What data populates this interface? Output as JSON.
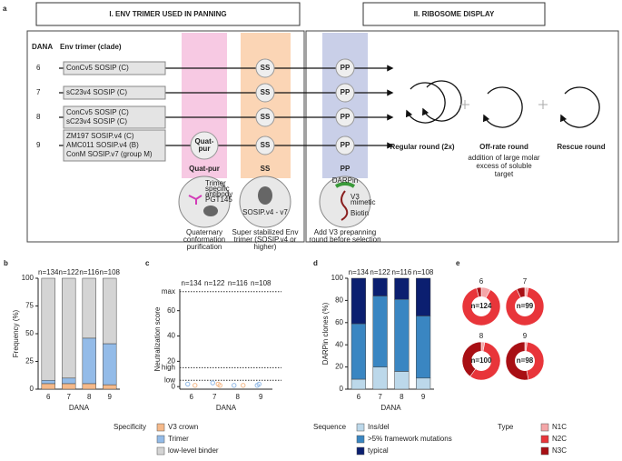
{
  "panel_a": {
    "label": "a",
    "header_left": "I. ENV TRIMER USED IN PANNING",
    "header_right": "II. RIBOSOME DISPLAY",
    "col_dana": "DANA",
    "col_env": "Env trimer (clade)",
    "rows": [
      {
        "dana": "6",
        "trimers": [
          "ConCv5 SOSIP (C)"
        ],
        "ss": "SS",
        "pp": "PP"
      },
      {
        "dana": "7",
        "trimers": [
          "sC23v4 SOSIP (C)"
        ],
        "ss": "SS",
        "pp": "PP"
      },
      {
        "dana": "8",
        "trimers": [
          "ConCv5 SOSIP (C)",
          "sC23v4 SOSIP (C)"
        ],
        "ss": "SS",
        "pp": "PP"
      },
      {
        "dana": "9",
        "trimers": [
          "ZM197 SOSIP.v4 (C)",
          "AMC011 SOSIP.v4 (B)",
          "ConM SOSIP.v7 (group M)"
        ],
        "quat": [
          "Quat-",
          "pur"
        ],
        "ss": "SS",
        "pp": "PP"
      }
    ],
    "column_labels": {
      "quat": "Quat-pur",
      "ss": "SS",
      "pp": "PP"
    },
    "illustration": {
      "antibody": [
        "Trimer",
        "specific",
        "antibody",
        "PGT145"
      ],
      "sosip": "SOSIP.v4 - v7",
      "darpin": "DARPin",
      "v3": [
        "V3",
        "mimetic"
      ],
      "biotin": "Biotin"
    },
    "descriptions": {
      "quat": [
        "Quaternary",
        "conformation",
        "purification"
      ],
      "ss": [
        "Super stabilized Env",
        "trimer (SOSIP.v4 or",
        "higher)"
      ],
      "pp": [
        "Add V3 prepanning",
        "round before selection"
      ]
    },
    "rounds": [
      {
        "title": "Regular round (2x)"
      },
      {
        "title": "Off-rate round",
        "detail": [
          "addition of large molar",
          "excess of soluble",
          "target"
        ]
      },
      {
        "title": "Rescue round"
      }
    ]
  },
  "chart_data": [
    {
      "type": "stacked_bar",
      "label": "b",
      "categories": [
        "6",
        "7",
        "8",
        "9"
      ],
      "annotations": [
        "n=134",
        "n=122",
        "n=116",
        "n=108"
      ],
      "series": [
        {
          "name": "V3 crown",
          "color": "#f5b98a",
          "values": [
            5,
            5,
            5,
            4
          ]
        },
        {
          "name": "Trimer",
          "color": "#93bbe8",
          "values": [
            3,
            5,
            41,
            37
          ]
        },
        {
          "name": "low-level binder",
          "color": "#d4d4d4",
          "values": [
            92,
            90,
            54,
            59
          ]
        }
      ],
      "ylim": [
        0,
        100
      ],
      "yticks": [
        0,
        25,
        50,
        75,
        100
      ],
      "ylabel": "Frequency (%)",
      "xlabel": "DANA",
      "legend_title": "Specificity"
    },
    {
      "type": "strip",
      "label": "c",
      "categories": [
        "6",
        "7",
        "8",
        "9"
      ],
      "annotations": [
        "n=134",
        "n=122",
        "n=116",
        "n=108"
      ],
      "series": [
        {
          "color": "#93bbe8",
          "x": [
            "6",
            "7",
            "8",
            "9",
            "9"
          ],
          "values": [
            2,
            3,
            1,
            2,
            1
          ]
        },
        {
          "color": "#f5b98a",
          "x": [
            "6",
            "7",
            "7",
            "8"
          ],
          "values": [
            1,
            1,
            2,
            1
          ]
        }
      ],
      "reference_lines": [
        {
          "value": 5,
          "label": "low"
        },
        {
          "value": 15,
          "label": "high"
        },
        {
          "value": 75,
          "label": "max"
        }
      ],
      "ylim": [
        -2,
        77
      ],
      "yticks": [
        0,
        20,
        40,
        60
      ],
      "ylabel": "Neutralization score",
      "xlabel": "DANA"
    },
    {
      "type": "stacked_bar",
      "label": "d",
      "categories": [
        "6",
        "7",
        "8",
        "9"
      ],
      "annotations": [
        "n=134",
        "n=122",
        "n=116",
        "n=108"
      ],
      "series": [
        {
          "name": "Ins/del",
          "color": "#bcd8ea",
          "values": [
            9,
            20,
            16,
            10
          ]
        },
        {
          "name": ">5% framework mutations",
          "color": "#3a86c2",
          "values": [
            50,
            64,
            65,
            56
          ]
        },
        {
          "name": "typical",
          "color": "#0b1f70",
          "values": [
            41,
            16,
            19,
            34
          ]
        }
      ],
      "ylim": [
        0,
        100
      ],
      "yticks": [
        0,
        20,
        40,
        60,
        80,
        100
      ],
      "ylabel": "DARPin clones (%)",
      "xlabel": "DANA",
      "legend_title": "Sequence"
    },
    {
      "type": "donut",
      "label": "e",
      "series_names": [
        "N1C",
        "N2C",
        "N3C"
      ],
      "colors": [
        "#f4a6a8",
        "#e8353a",
        "#a80f14"
      ],
      "legend_title": "Type",
      "pies": [
        {
          "title": "6",
          "n_label": "n=124",
          "values": [
            8,
            88,
            4
          ]
        },
        {
          "title": "7",
          "n_label": "n=99",
          "values": [
            3,
            90,
            7
          ]
        },
        {
          "title": "8",
          "n_label": "n=100",
          "values": [
            3,
            57,
            40
          ]
        },
        {
          "title": "9",
          "n_label": "n=98",
          "values": [
            2,
            45,
            53
          ]
        }
      ]
    }
  ]
}
